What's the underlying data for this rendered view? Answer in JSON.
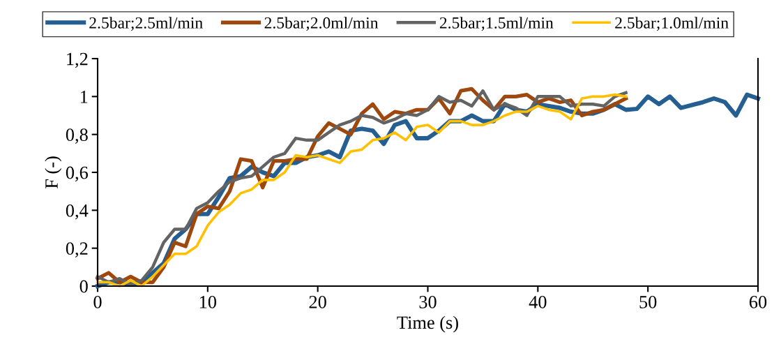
{
  "chart_data": {
    "type": "line",
    "xlabel": "Time (s)",
    "ylabel": "F (-)",
    "xlim": [
      0,
      60
    ],
    "xticks": [
      0,
      10,
      20,
      30,
      40,
      50,
      60
    ],
    "ylim": [
      0,
      1.2
    ],
    "yticks": [
      {
        "value": 0,
        "label": "0"
      },
      {
        "value": 0.2,
        "label": "0,2"
      },
      {
        "value": 0.4,
        "label": "0,4"
      },
      {
        "value": 0.6,
        "label": "0,6"
      },
      {
        "value": 0.8,
        "label": "0,8"
      },
      {
        "value": 1,
        "label": "1"
      },
      {
        "value": 1.2,
        "label": "1,2"
      }
    ],
    "grid": false,
    "legend": "top",
    "marker": "none",
    "line_style": "solid",
    "series": [
      {
        "name": "2.5bar;2.5ml/min",
        "color": "#255e91",
        "x": [
          0,
          1,
          2,
          3,
          4,
          5,
          6,
          7,
          8,
          9,
          10,
          11,
          12,
          13,
          14,
          15,
          16,
          17,
          18,
          19,
          20,
          21,
          22,
          23,
          24,
          25,
          26,
          27,
          28,
          29,
          30,
          31,
          32,
          33,
          34,
          35,
          36,
          37,
          38,
          39,
          40,
          41,
          42,
          43,
          44,
          45,
          46,
          47,
          48,
          49,
          50,
          51,
          52,
          53,
          54,
          55,
          56,
          57,
          58,
          59,
          60
        ],
        "values": [
          0.0,
          0.02,
          0.02,
          0.01,
          0.02,
          0.07,
          0.12,
          0.25,
          0.3,
          0.38,
          0.38,
          0.47,
          0.57,
          0.58,
          0.63,
          0.6,
          0.58,
          0.65,
          0.65,
          0.68,
          0.69,
          0.71,
          0.68,
          0.82,
          0.83,
          0.82,
          0.75,
          0.85,
          0.87,
          0.78,
          0.78,
          0.82,
          0.87,
          0.87,
          0.9,
          0.87,
          0.87,
          0.96,
          0.93,
          0.92,
          0.96,
          0.95,
          0.94,
          0.92,
          0.91,
          0.91,
          0.93,
          0.96,
          0.93,
          0.935,
          1.0,
          0.96,
          1.0,
          0.94,
          0.955,
          0.97,
          0.99,
          0.97,
          0.9,
          1.01,
          0.99
        ]
      },
      {
        "name": "2.5bar;2.0ml/min",
        "color": "#9e480e",
        "x": [
          0,
          1,
          2,
          3,
          4,
          5,
          6,
          7,
          8,
          9,
          10,
          11,
          12,
          13,
          14,
          15,
          16,
          17,
          18,
          19,
          20,
          21,
          22,
          23,
          24,
          25,
          26,
          27,
          28,
          29,
          30,
          31,
          32,
          33,
          34,
          35,
          36,
          37,
          38,
          39,
          40,
          41,
          42,
          43,
          44,
          45,
          46,
          47,
          48
        ],
        "values": [
          0.04,
          0.07,
          0.02,
          0.05,
          0.02,
          0.02,
          0.1,
          0.23,
          0.21,
          0.38,
          0.42,
          0.41,
          0.5,
          0.67,
          0.66,
          0.52,
          0.66,
          0.66,
          0.67,
          0.67,
          0.79,
          0.86,
          0.83,
          0.8,
          0.91,
          0.96,
          0.88,
          0.92,
          0.91,
          0.93,
          0.93,
          0.99,
          0.91,
          1.03,
          1.04,
          0.98,
          0.93,
          1.0,
          1.0,
          1.01,
          0.97,
          0.99,
          0.97,
          0.98,
          0.9,
          0.92,
          0.93,
          0.96,
          0.99
        ]
      },
      {
        "name": "2.5bar;1.5ml/min",
        "color": "#636363",
        "x": [
          0,
          1,
          2,
          3,
          4,
          5,
          6,
          7,
          8,
          9,
          10,
          11,
          12,
          13,
          14,
          15,
          16,
          17,
          18,
          19,
          20,
          21,
          22,
          23,
          24,
          25,
          26,
          27,
          28,
          29,
          30,
          31,
          32,
          33,
          34,
          35,
          36,
          37,
          38,
          39,
          40,
          41,
          42,
          43,
          44,
          45,
          46,
          47,
          48
        ],
        "values": [
          0.05,
          0.02,
          0.04,
          0.01,
          0.03,
          0.1,
          0.23,
          0.3,
          0.3,
          0.41,
          0.44,
          0.5,
          0.55,
          0.57,
          0.58,
          0.63,
          0.68,
          0.7,
          0.78,
          0.77,
          0.77,
          0.81,
          0.85,
          0.87,
          0.9,
          0.89,
          0.86,
          0.88,
          0.91,
          0.9,
          0.93,
          1.0,
          0.97,
          0.98,
          0.95,
          1.03,
          0.93,
          0.96,
          0.94,
          0.9,
          1.0,
          1.0,
          1.0,
          0.95,
          0.96,
          0.96,
          0.95,
          1.0,
          1.02
        ]
      },
      {
        "name": "2.5bar;1.0ml/min",
        "color": "#ffc000",
        "x": [
          0,
          1,
          2,
          3,
          4,
          5,
          6,
          7,
          8,
          9,
          10,
          11,
          12,
          13,
          14,
          15,
          16,
          17,
          18,
          19,
          20,
          21,
          22,
          23,
          24,
          25,
          26,
          27,
          28,
          29,
          30,
          31,
          32,
          33,
          34,
          35,
          36,
          37,
          38,
          39,
          40,
          41,
          42,
          43,
          44,
          45,
          46,
          47,
          48
        ],
        "values": [
          0.02,
          0.02,
          0.0,
          0.03,
          0.0,
          0.05,
          0.11,
          0.17,
          0.17,
          0.21,
          0.32,
          0.39,
          0.43,
          0.49,
          0.51,
          0.56,
          0.56,
          0.6,
          0.69,
          0.68,
          0.69,
          0.67,
          0.65,
          0.71,
          0.72,
          0.77,
          0.78,
          0.81,
          0.77,
          0.84,
          0.85,
          0.81,
          0.87,
          0.87,
          0.85,
          0.85,
          0.87,
          0.9,
          0.92,
          0.92,
          0.95,
          0.93,
          0.92,
          0.88,
          0.99,
          1.0,
          1.0,
          1.01,
          1.0
        ]
      }
    ]
  }
}
